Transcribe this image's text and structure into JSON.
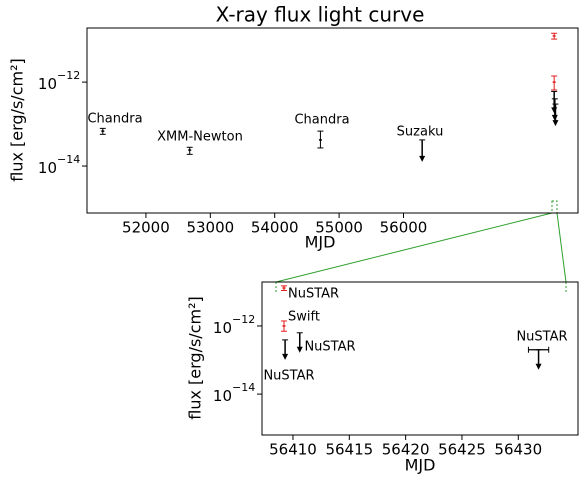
{
  "chart_data": [
    {
      "type": "errorbar",
      "title": "X-ray flux light curve",
      "x_label": "MJD",
      "y_label": "flux [erg/s/cm²]",
      "log_y": true,
      "xlim": [
        51085,
        58710
      ],
      "xticks": [
        52000,
        53000,
        54000,
        55000,
        56000
      ],
      "ylim": [
        7.6e-16,
        1.95e-11
      ],
      "yticks": [
        {
          "value": 1e-12,
          "label": "10",
          "exponent": "−12"
        },
        {
          "value": 1e-14,
          "label": "10",
          "exponent": "−14"
        }
      ],
      "points": [
        {
          "x": 51330,
          "y": 6.8e-14,
          "yerr": [
            1.1e-14,
            1.1e-14
          ],
          "color": "#000000"
        },
        {
          "x": 52680,
          "y": 2.4e-14,
          "yerr": [
            5e-15,
            4e-15
          ],
          "color": "#000000"
        },
        {
          "x": 54710,
          "y": 4.2e-14,
          "yerr": [
            1.5e-14,
            2.6e-14
          ],
          "color": "#000000"
        },
        {
          "x": 56290,
          "y": 4.2e-14,
          "upper_limit": true,
          "color": "#000000"
        },
        {
          "x": 58340,
          "y": 1.26e-11,
          "yerr": [
            2e-12,
            2e-12
          ],
          "color": "#e31a1c"
        },
        {
          "x": 58340,
          "y": 1e-12,
          "yerr": [
            3.5e-13,
            4e-13
          ],
          "color": "#e31a1c"
        },
        {
          "x": 58340,
          "y": 6e-13,
          "upper_limit": true,
          "color": "#000000"
        },
        {
          "x": 58350,
          "y": 4e-13,
          "upper_limit": true,
          "color": "#000000"
        },
        {
          "x": 58360,
          "y": 3e-13,
          "upper_limit": true,
          "color": "#000000"
        }
      ],
      "annotations": [
        {
          "text": "Chandra",
          "color": "#000000"
        },
        {
          "text": "XMM-Newton",
          "color": "#000000"
        },
        {
          "text": "Chandra",
          "color": "#000000"
        },
        {
          "text": "Suzaku",
          "color": "#000000"
        }
      ]
    },
    {
      "type": "errorbar",
      "x_label": "MJD",
      "y_label": "flux [erg/s/cm²]",
      "log_y": true,
      "xlim": [
        56407.25,
        56435.3
      ],
      "xticks": [
        56410,
        56415,
        56420,
        56425,
        56430
      ],
      "ylim": [
        6.3e-16,
        1.95e-11
      ],
      "yticks": [
        {
          "value": 1e-12,
          "label": "10",
          "exponent": "−12"
        },
        {
          "value": 1e-14,
          "label": "10",
          "exponent": "−14"
        }
      ],
      "points": [
        {
          "x": 56409.2,
          "y": 1.3e-11,
          "yerr": [
            2e-12,
            2e-12
          ],
          "color": "#e31a1c"
        },
        {
          "x": 56409.2,
          "y": 1e-12,
          "yerr": [
            3e-13,
            4e-13
          ],
          "color": "#e31a1c"
        },
        {
          "x": 56409.3,
          "y": 3.9e-13,
          "upper_limit": true,
          "color": "#000000"
        },
        {
          "x": 56410.6,
          "y": 6.3e-13,
          "upper_limit": true,
          "color": "#000000"
        },
        {
          "x": 56431.8,
          "y": 2e-13,
          "xerr": 0.9,
          "upper_limit": true,
          "color": "#000000"
        }
      ],
      "annotations": [
        {
          "text": "NuSTAR",
          "color": "#e31a1c"
        },
        {
          "text": "Swift",
          "color": "#e31a1c"
        },
        {
          "text": "NuSTAR",
          "color": "#000000"
        },
        {
          "text": "NuSTAR",
          "color": "#000000"
        },
        {
          "text": "NuSTAR",
          "color": "#000000"
        }
      ]
    }
  ]
}
